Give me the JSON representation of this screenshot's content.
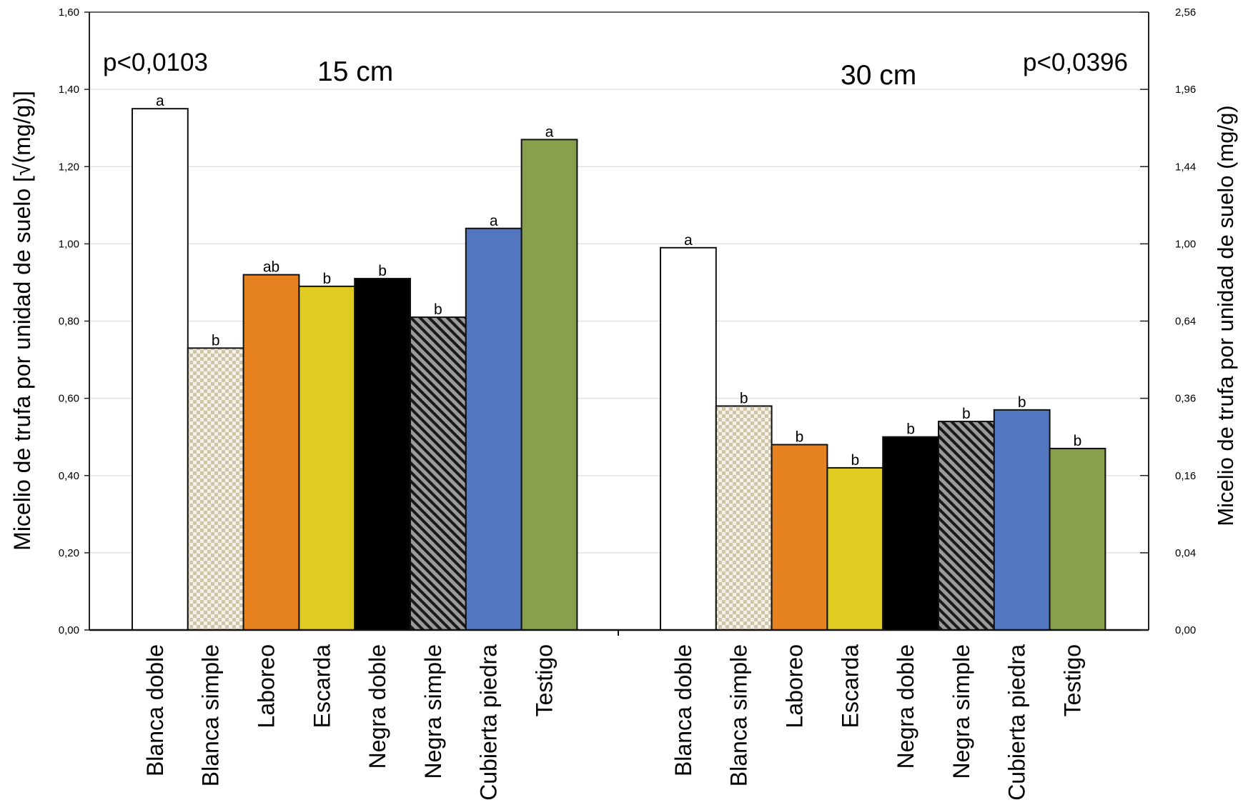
{
  "chart_data": {
    "type": "bar",
    "title": "",
    "ylabel": "Micelio de trufa por unidad de suelo [√(mg/g)]",
    "ylabel_right": "Micelio de trufa por unidad de suelo (mg/g)",
    "ylim": [
      0,
      1.6
    ],
    "y_ticks": [
      0,
      0.2,
      0.4,
      0.6,
      0.8,
      1.0,
      1.2,
      1.4,
      1.6
    ],
    "y_tick_labels": [
      "0,00",
      "0,20",
      "0,40",
      "0,60",
      "0,80",
      "1,00",
      "1,20",
      "1,40",
      "1,60"
    ],
    "y_tick_labels_right": [
      "0,00",
      "0,04",
      "0,16",
      "0,36",
      "0,64",
      "1,00",
      "1,44",
      "1,96",
      "2,56"
    ],
    "grid": true,
    "groups": [
      {
        "label": "15 cm",
        "p_value": "p<0,0103",
        "categories": [
          "Blanca doble",
          "Blanca simple",
          "Laboreo",
          "Escarda",
          "Negra doble",
          "Negra simple",
          "Cubierta piedra",
          "Testigo"
        ],
        "values": [
          1.35,
          0.73,
          0.92,
          0.89,
          0.91,
          0.81,
          1.04,
          1.27
        ],
        "letters": [
          "a",
          "b",
          "ab",
          "b",
          "b",
          "b",
          "a",
          "a"
        ]
      },
      {
        "label": "30 cm",
        "p_value": "p<0,0396",
        "categories": [
          "Blanca doble",
          "Blanca simple",
          "Laboreo",
          "Escarda",
          "Negra doble",
          "Negra simple",
          "Cubierta piedra",
          "Testigo"
        ],
        "values": [
          0.99,
          0.58,
          0.48,
          0.42,
          0.5,
          0.54,
          0.57,
          0.47
        ],
        "letters": [
          "a",
          "b",
          "b",
          "b",
          "b",
          "b",
          "b",
          "b"
        ]
      }
    ],
    "bar_colors": [
      "#ffffff",
      "#cfc6aa",
      "#e6821f",
      "#dfcb22",
      "#000000",
      "#9b9b9b",
      "#5276bf",
      "#889f4d"
    ],
    "bar_patterns": [
      "solid",
      "checkerboard",
      "solid",
      "solid",
      "solid",
      "diagonal-hatch",
      "solid",
      "solid"
    ]
  }
}
